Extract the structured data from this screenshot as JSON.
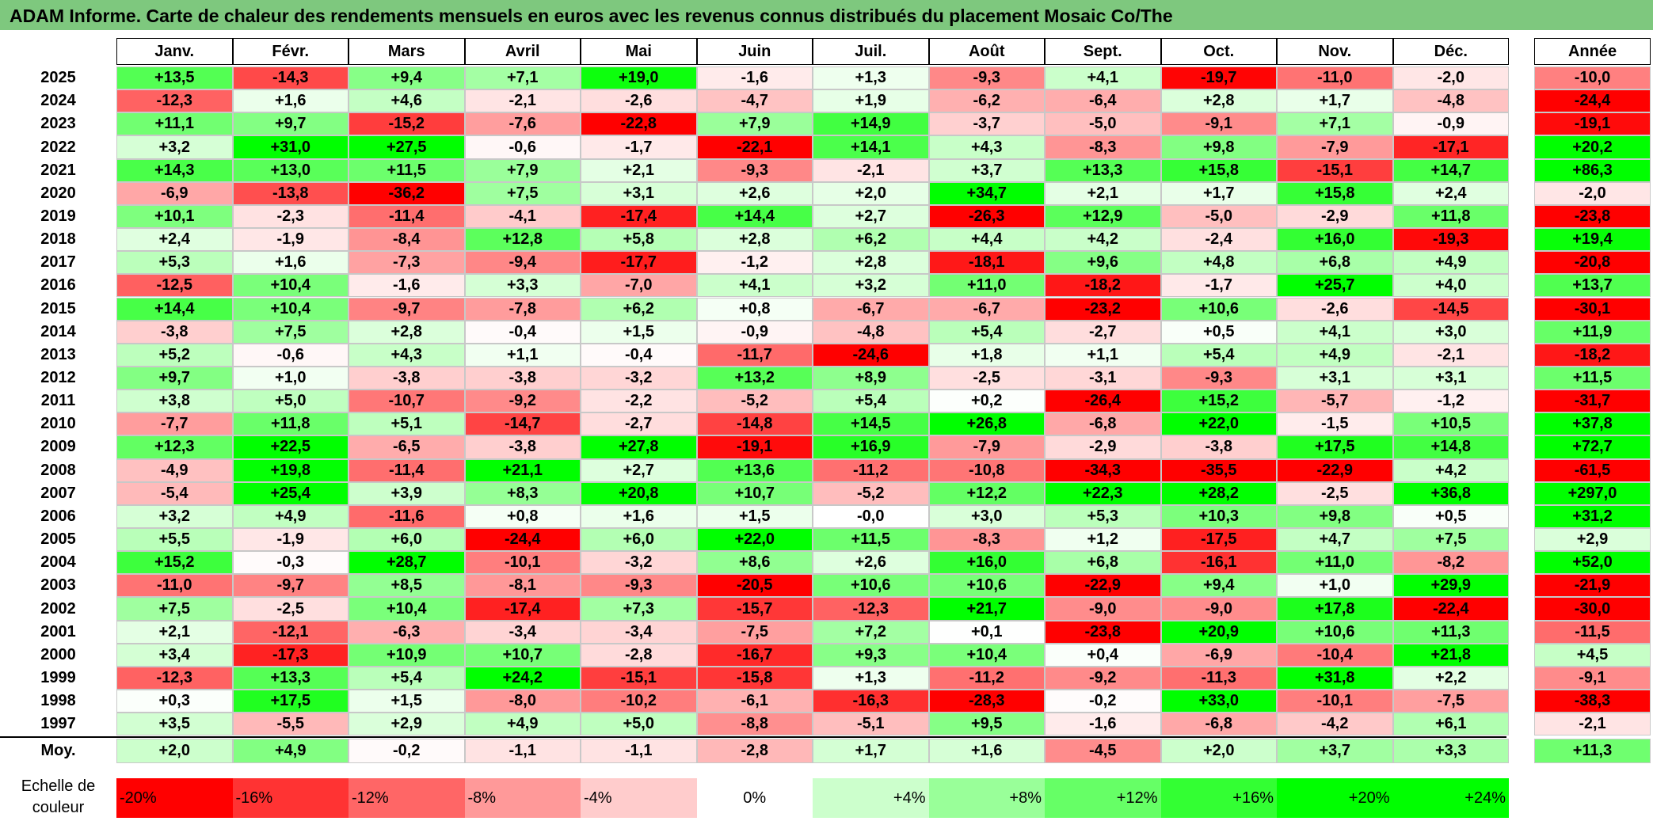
{
  "title": "ADAM Informe. Carte de chaleur des rendements mensuels en euros avec les revenus connus distribués du placement Mosaic Co/The",
  "chart_data": {
    "type": "heatmap",
    "months": [
      "Janv.",
      "Févr.",
      "Mars",
      "Avril",
      "Mai",
      "Juin",
      "Juil.",
      "Août",
      "Sept.",
      "Oct.",
      "Nov.",
      "Déc."
    ],
    "annual_header": "Année",
    "rows": [
      {
        "year": "2025",
        "values": [
          "+13,5",
          "-14,3",
          "+9,4",
          "+7,1",
          "+19,0",
          "-1,6",
          "+1,3",
          "-9,3",
          "+4,1",
          "-19,7",
          "-11,0",
          "-2,0"
        ],
        "annual": "-10,0"
      },
      {
        "year": "2024",
        "values": [
          "-12,3",
          "+1,6",
          "+4,6",
          "-2,1",
          "-2,6",
          "-4,7",
          "+1,9",
          "-6,2",
          "-6,4",
          "+2,8",
          "+1,7",
          "-4,8"
        ],
        "annual": "-24,4"
      },
      {
        "year": "2023",
        "values": [
          "+11,1",
          "+9,7",
          "-15,2",
          "-7,6",
          "-22,8",
          "+7,9",
          "+14,9",
          "-3,7",
          "-5,0",
          "-9,1",
          "+7,1",
          "-0,9"
        ],
        "annual": "-19,1"
      },
      {
        "year": "2022",
        "values": [
          "+3,2",
          "+31,0",
          "+27,5",
          "-0,6",
          "-1,7",
          "-22,1",
          "+14,1",
          "+4,3",
          "-8,3",
          "+9,8",
          "-7,9",
          "-17,1"
        ],
        "annual": "+20,2"
      },
      {
        "year": "2021",
        "values": [
          "+14,3",
          "+13,0",
          "+11,5",
          "+7,9",
          "+2,1",
          "-9,3",
          "-2,1",
          "+3,7",
          "+13,3",
          "+15,8",
          "-15,1",
          "+14,7"
        ],
        "annual": "+86,3"
      },
      {
        "year": "2020",
        "values": [
          "-6,9",
          "-13,8",
          "-36,2",
          "+7,5",
          "+3,1",
          "+2,6",
          "+2,0",
          "+34,7",
          "+2,1",
          "+1,7",
          "+15,8",
          "+2,4"
        ],
        "annual": "-2,0"
      },
      {
        "year": "2019",
        "values": [
          "+10,1",
          "-2,3",
          "-11,4",
          "-4,1",
          "-17,4",
          "+14,4",
          "+2,7",
          "-26,3",
          "+12,9",
          "-5,0",
          "-2,9",
          "+11,8"
        ],
        "annual": "-23,8"
      },
      {
        "year": "2018",
        "values": [
          "+2,4",
          "-1,9",
          "-8,4",
          "+12,8",
          "+5,8",
          "+2,8",
          "+6,2",
          "+4,4",
          "+4,2",
          "-2,4",
          "+16,0",
          "-19,3"
        ],
        "annual": "+19,4"
      },
      {
        "year": "2017",
        "values": [
          "+5,3",
          "+1,6",
          "-7,3",
          "-9,4",
          "-17,7",
          "-1,2",
          "+2,8",
          "-18,1",
          "+9,6",
          "+4,8",
          "+6,8",
          "+4,9"
        ],
        "annual": "-20,8"
      },
      {
        "year": "2016",
        "values": [
          "-12,5",
          "+10,4",
          "-1,6",
          "+3,3",
          "-7,0",
          "+4,1",
          "+3,2",
          "+11,0",
          "-18,2",
          "-1,7",
          "+25,7",
          "+4,0"
        ],
        "annual": "+13,7"
      },
      {
        "year": "2015",
        "values": [
          "+14,4",
          "+10,4",
          "-9,7",
          "-7,8",
          "+6,2",
          "+0,8",
          "-6,7",
          "-6,7",
          "-23,2",
          "+10,6",
          "-2,6",
          "-14,5"
        ],
        "annual": "-30,1"
      },
      {
        "year": "2014",
        "values": [
          "-3,8",
          "+7,5",
          "+2,8",
          "-0,4",
          "+1,5",
          "-0,9",
          "-4,8",
          "+5,4",
          "-2,7",
          "+0,5",
          "+4,1",
          "+3,0"
        ],
        "annual": "+11,9"
      },
      {
        "year": "2013",
        "values": [
          "+5,2",
          "-0,6",
          "+4,3",
          "+1,1",
          "-0,4",
          "-11,7",
          "-24,6",
          "+1,8",
          "+1,1",
          "+5,4",
          "+4,9",
          "-2,1"
        ],
        "annual": "-18,2"
      },
      {
        "year": "2012",
        "values": [
          "+9,7",
          "+1,0",
          "-3,8",
          "-3,8",
          "-3,2",
          "+13,2",
          "+8,9",
          "-2,5",
          "-3,1",
          "-9,3",
          "+3,1",
          "+3,1"
        ],
        "annual": "+11,5"
      },
      {
        "year": "2011",
        "values": [
          "+3,8",
          "+5,0",
          "-10,7",
          "-9,2",
          "-2,2",
          "-5,2",
          "+5,4",
          "+0,2",
          "-26,4",
          "+15,2",
          "-5,7",
          "-1,2"
        ],
        "annual": "-31,7"
      },
      {
        "year": "2010",
        "values": [
          "-7,7",
          "+11,8",
          "+5,1",
          "-14,7",
          "-2,7",
          "-14,8",
          "+14,5",
          "+26,8",
          "-6,8",
          "+22,0",
          "-1,5",
          "+10,5"
        ],
        "annual": "+37,8"
      },
      {
        "year": "2009",
        "values": [
          "+12,3",
          "+22,5",
          "-6,5",
          "-3,8",
          "+27,8",
          "-19,1",
          "+16,9",
          "-7,9",
          "-2,9",
          "-3,8",
          "+17,5",
          "+14,8"
        ],
        "annual": "+72,7"
      },
      {
        "year": "2008",
        "values": [
          "-4,9",
          "+19,8",
          "-11,4",
          "+21,1",
          "+2,7",
          "+13,6",
          "-11,2",
          "-10,8",
          "-34,3",
          "-35,5",
          "-22,9",
          "+4,2"
        ],
        "annual": "-61,5"
      },
      {
        "year": "2007",
        "values": [
          "-5,4",
          "+25,4",
          "+3,9",
          "+8,3",
          "+20,8",
          "+10,7",
          "-5,2",
          "+12,2",
          "+22,3",
          "+28,2",
          "-2,5",
          "+36,8"
        ],
        "annual": "+297,0"
      },
      {
        "year": "2006",
        "values": [
          "+3,2",
          "+4,9",
          "-11,6",
          "+0,8",
          "+1,6",
          "+1,5",
          "-0,0",
          "+3,0",
          "+5,3",
          "+10,3",
          "+9,8",
          "+0,5"
        ],
        "annual": "+31,2"
      },
      {
        "year": "2005",
        "values": [
          "+5,5",
          "-1,9",
          "+6,0",
          "-24,4",
          "+6,0",
          "+22,0",
          "+11,5",
          "-8,3",
          "+1,2",
          "-17,5",
          "+4,7",
          "+7,5"
        ],
        "annual": "+2,9"
      },
      {
        "year": "2004",
        "values": [
          "+15,2",
          "-0,3",
          "+28,7",
          "-10,1",
          "-3,2",
          "+8,6",
          "+2,6",
          "+16,0",
          "+6,8",
          "-16,1",
          "+11,0",
          "-8,2"
        ],
        "annual": "+52,0"
      },
      {
        "year": "2003",
        "values": [
          "-11,0",
          "-9,7",
          "+8,5",
          "-8,1",
          "-9,3",
          "-20,5",
          "+10,6",
          "+10,6",
          "-22,9",
          "+9,4",
          "+1,0",
          "+29,9"
        ],
        "annual": "-21,9"
      },
      {
        "year": "2002",
        "values": [
          "+7,5",
          "-2,5",
          "+10,4",
          "-17,4",
          "+7,3",
          "-15,7",
          "-12,3",
          "+21,7",
          "-9,0",
          "-9,0",
          "+17,8",
          "-22,4"
        ],
        "annual": "-30,0"
      },
      {
        "year": "2001",
        "values": [
          "+2,1",
          "-12,1",
          "-6,3",
          "-3,4",
          "-3,4",
          "-7,5",
          "+7,2",
          "+0,1",
          "-23,8",
          "+20,9",
          "+10,6",
          "+11,3"
        ],
        "annual": "-11,5"
      },
      {
        "year": "2000",
        "values": [
          "+3,4",
          "-17,3",
          "+10,9",
          "+10,7",
          "-2,8",
          "-16,7",
          "+9,3",
          "+10,4",
          "+0,4",
          "-6,9",
          "-10,4",
          "+21,8"
        ],
        "annual": "+4,5"
      },
      {
        "year": "1999",
        "values": [
          "-12,3",
          "+13,3",
          "+5,4",
          "+24,2",
          "-15,1",
          "-15,8",
          "+1,3",
          "-11,2",
          "-9,2",
          "-11,3",
          "+31,8",
          "+2,2"
        ],
        "annual": "-9,1"
      },
      {
        "year": "1998",
        "values": [
          "+0,3",
          "+17,5",
          "+1,5",
          "-8,0",
          "-10,2",
          "-6,1",
          "-16,3",
          "-28,3",
          "-0,2",
          "+33,0",
          "-10,1",
          "-7,5"
        ],
        "annual": "-38,3"
      },
      {
        "year": "1997",
        "values": [
          "+3,5",
          "-5,5",
          "+2,9",
          "+4,9",
          "+5,0",
          "-8,8",
          "-5,1",
          "+9,5",
          "-1,6",
          "-6,8",
          "-4,2",
          "+6,1"
        ],
        "annual": "-2,1"
      }
    ],
    "average": {
      "label": "Moy.",
      "values": [
        "+2,0",
        "+4,9",
        "-0,2",
        "-1,1",
        "-1,1",
        "-2,8",
        "+1,7",
        "+1,6",
        "-4,5",
        "+2,0",
        "+3,7",
        "+3,3"
      ],
      "annual": "+11,3"
    },
    "scale": {
      "label_line1": "Echelle de",
      "label_line2": "couleur",
      "stops": [
        "-20%",
        "-16%",
        "-12%",
        "-8%",
        "-4%",
        "0%",
        "+4%",
        "+8%",
        "+12%",
        "+16%",
        "+20%",
        "+24%"
      ]
    },
    "colors": {
      "negative_max": "#ff0000",
      "neutral": "#ffffff",
      "positive_max": "#00ff00",
      "title_bg": "#7ec87e"
    }
  }
}
